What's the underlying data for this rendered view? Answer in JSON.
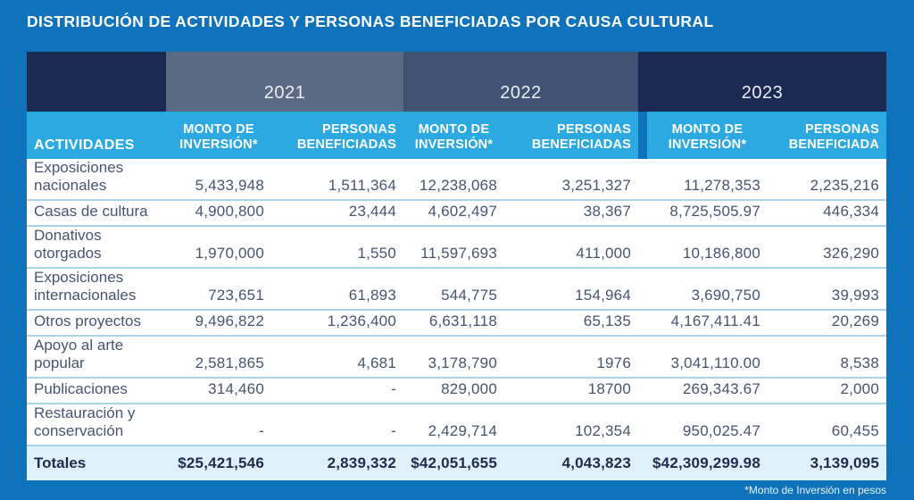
{
  "title": "DISTRIBUCIÓN DE ACTIVIDADES Y PERSONAS BENEFICIADAS POR CAUSA CULTURAL",
  "footnote": "*Monto de Inversión en pesos",
  "colors": {
    "page_background": "#0E73BA",
    "header_navy": "#1B2A52",
    "group_2021": "#5B6A84",
    "group_2022": "#3F5271",
    "header_light_blue": "#2CA9E0",
    "body_text": "#475470",
    "totals_background": "#DEF0FA",
    "totals_text": "#1F2C4E",
    "row_separator": "#ABD4EB"
  },
  "table": {
    "activities_header": "ACTIVIDADES",
    "years": [
      "2021",
      "2022",
      "2023"
    ],
    "sub_headers": [
      "MONTO DE\nINVERSIÓN*",
      "PERSONAS\nBENEFICIADAS",
      "MONTO DE\nINVERSIÓN*",
      "PERSONAS\nBENEFICIADAS",
      "MONTO DE\nINVERSIÓN*",
      "PERSONAS\nBENEFICIADA"
    ],
    "rows": [
      {
        "label": "Exposiciones\nnacionales",
        "values": [
          "5,433,948",
          "1,511,364",
          "12,238,068",
          "3,251,327",
          "11,278,353",
          "2,235,216"
        ]
      },
      {
        "label": "Casas de cultura",
        "values": [
          "4,900,800",
          "23,444",
          "4,602,497",
          "38,367",
          "8,725,505.97",
          "446,334"
        ]
      },
      {
        "label": "Donativos\notorgados",
        "values": [
          "1,970,000",
          "1,550",
          "11,597,693",
          "411,000",
          "10,186,800",
          "326,290"
        ]
      },
      {
        "label": "Exposiciones\ninternacionales",
        "values": [
          "723,651",
          "61,893",
          "544,775",
          "154,964",
          "3,690,750",
          "39,993"
        ]
      },
      {
        "label": "Otros proyectos",
        "values": [
          "9,496,822",
          "1,236,400",
          "6,631,118",
          "65,135",
          "4,167,411.41",
          "20,269"
        ]
      },
      {
        "label": "Apoyo al arte\npopular",
        "values": [
          "2,581,865",
          "4,681",
          "3,178,790",
          "1976",
          "3,041,110.00",
          "8,538"
        ]
      },
      {
        "label": "Publicaciones",
        "values": [
          "314,460",
          "-",
          "829,000",
          "18700",
          "269,343.67",
          "2,000"
        ]
      },
      {
        "label": "Restauración y\nconservación",
        "values": [
          "-",
          "-",
          "2,429,714",
          "102,354",
          "950,025.47",
          "60,455"
        ]
      }
    ],
    "totals": {
      "label": "Totales",
      "values": [
        "$25,421,546",
        "2,839,332",
        "$42,051,655",
        "4,043,823",
        "$42,309,299.98",
        "3,139,095"
      ]
    }
  },
  "chart_data": {
    "type": "table",
    "title": "DISTRIBUCIÓN DE ACTIVIDADES Y PERSONAS BENEFICIADAS POR CAUSA CULTURAL",
    "note": "*Monto de Inversión en pesos",
    "column_groups": [
      "2021",
      "2022",
      "2023"
    ],
    "columns": [
      "Actividades",
      "2021 Monto de Inversión*",
      "2021 Personas Beneficiadas",
      "2022 Monto de Inversión*",
      "2022 Personas Beneficiadas",
      "2023 Monto de Inversión*",
      "2023 Personas Beneficiada"
    ],
    "rows": [
      [
        "Exposiciones nacionales",
        "5,433,948",
        "1,511,364",
        "12,238,068",
        "3,251,327",
        "11,278,353",
        "2,235,216"
      ],
      [
        "Casas de cultura",
        "4,900,800",
        "23,444",
        "4,602,497",
        "38,367",
        "8,725,505.97",
        "446,334"
      ],
      [
        "Donativos otorgados",
        "1,970,000",
        "1,550",
        "11,597,693",
        "411,000",
        "10,186,800",
        "326,290"
      ],
      [
        "Exposiciones internacionales",
        "723,651",
        "61,893",
        "544,775",
        "154,964",
        "3,690,750",
        "39,993"
      ],
      [
        "Otros proyectos",
        "9,496,822",
        "1,236,400",
        "6,631,118",
        "65,135",
        "4,167,411.41",
        "20,269"
      ],
      [
        "Apoyo al arte popular",
        "2,581,865",
        "4,681",
        "3,178,790",
        "1976",
        "3,041,110.00",
        "8,538"
      ],
      [
        "Publicaciones",
        "314,460",
        "-",
        "829,000",
        "18700",
        "269,343.67",
        "2,000"
      ],
      [
        "Restauración y conservación",
        "-",
        "-",
        "2,429,714",
        "102,354",
        "950,025.47",
        "60,455"
      ]
    ],
    "totals": [
      "Totales",
      "$25,421,546",
      "2,839,332",
      "$42,051,655",
      "4,043,823",
      "$42,309,299.98",
      "3,139,095"
    ]
  }
}
